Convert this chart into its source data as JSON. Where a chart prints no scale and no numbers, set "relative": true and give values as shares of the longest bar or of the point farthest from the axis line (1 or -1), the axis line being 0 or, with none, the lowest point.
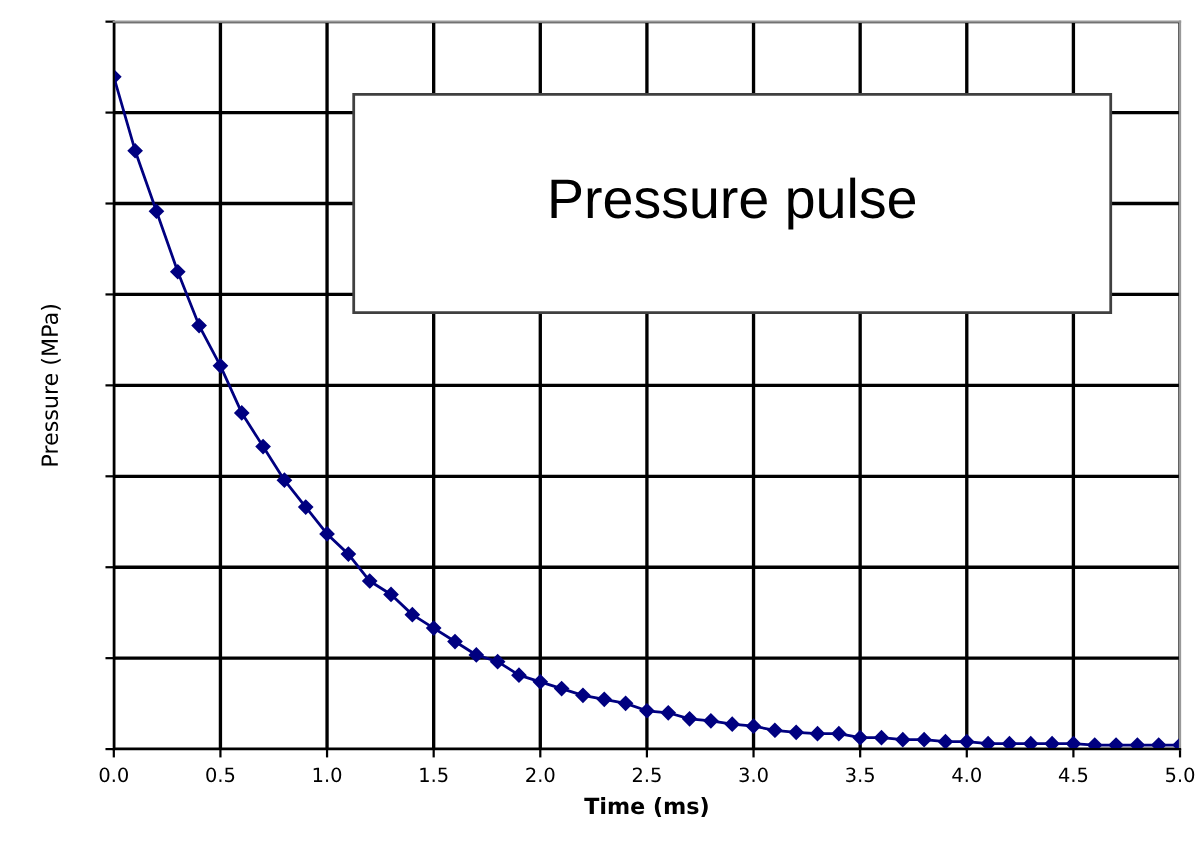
{
  "chart_data": {
    "type": "line",
    "title": "Pressure pulse",
    "xlabel": "Time (ms)",
    "ylabel": "Pressure (MPa)",
    "relative": true,
    "x": [
      0.0,
      0.1,
      0.2,
      0.3,
      0.4,
      0.5,
      0.6,
      0.7,
      0.8,
      0.9,
      1.0,
      1.1,
      1.2,
      1.3,
      1.4,
      1.5,
      1.6,
      1.7,
      1.8,
      1.9,
      2.0,
      2.1,
      2.2,
      2.3,
      2.4,
      2.5,
      2.6,
      2.7,
      2.8,
      2.9,
      3.0,
      3.1,
      3.2,
      3.3,
      3.4,
      3.5,
      3.6,
      3.7,
      3.8,
      3.9,
      4.0,
      4.1,
      4.2,
      4.3,
      4.4,
      4.5,
      4.6,
      4.7,
      4.8,
      4.9,
      5.0
    ],
    "series": [
      {
        "color": "#000080",
        "values": [
          1.0,
          0.89,
          0.8,
          0.71,
          0.63,
          0.57,
          0.5,
          0.45,
          0.4,
          0.36,
          0.32,
          0.29,
          0.25,
          0.23,
          0.2,
          0.18,
          0.16,
          0.14,
          0.13,
          0.11,
          0.1,
          0.09,
          0.08,
          0.074,
          0.068,
          0.057,
          0.054,
          0.045,
          0.042,
          0.037,
          0.034,
          0.028,
          0.025,
          0.023,
          0.023,
          0.017,
          0.017,
          0.014,
          0.014,
          0.011,
          0.011,
          0.008,
          0.008,
          0.008,
          0.008,
          0.008,
          0.006,
          0.006,
          0.006,
          0.006,
          0.006
        ]
      }
    ],
    "xlim": [
      0,
      5
    ],
    "xticks": [
      {
        "value": 0,
        "label": "0.0"
      },
      {
        "value": 0.5,
        "label": "0.5"
      },
      {
        "value": 1,
        "label": "1.0"
      },
      {
        "value": 1.5,
        "label": "1.5"
      },
      {
        "value": 2,
        "label": "2.0"
      },
      {
        "value": 2.5,
        "label": "2.5"
      },
      {
        "value": 3,
        "label": "3.0"
      },
      {
        "value": 3.5,
        "label": "3.5"
      },
      {
        "value": 4,
        "label": "4.0"
      },
      {
        "value": 4.5,
        "label": "4.5"
      },
      {
        "value": 5,
        "label": "5.0"
      }
    ],
    "grid": true,
    "marker": "diamond",
    "line_style": "solid",
    "legend": false
  }
}
